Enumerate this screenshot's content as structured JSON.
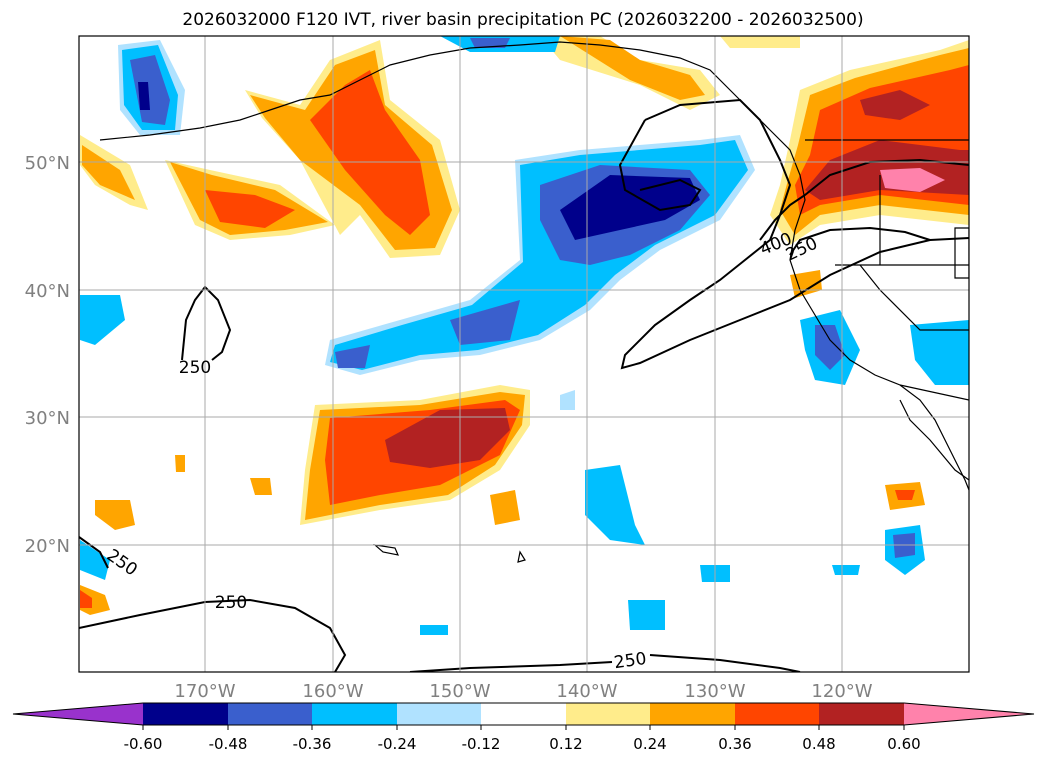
{
  "title": "2026032000 F120 IVT, river basin precipitation PC (2026032200 - 2026032500)",
  "map": {
    "lat_labels": [
      "50°N",
      "40°N",
      "30°N",
      "20°N"
    ],
    "lon_labels": [
      "170°W",
      "160°W",
      "150°W",
      "140°W",
      "130°W",
      "120°W"
    ],
    "gridlines": true,
    "contour_labels": [
      "250",
      "250",
      "250",
      "250",
      "400",
      "250"
    ]
  },
  "colorbar": {
    "ticks": [
      "-0.60",
      "-0.48",
      "-0.36",
      "-0.24",
      "-0.12",
      "0.12",
      "0.24",
      "0.36",
      "0.48",
      "0.60"
    ],
    "colors": [
      "#9932cc",
      "#00008b",
      "#3a5fcd",
      "#00bfff",
      "#b0e2ff",
      "#ffffff",
      "#ffec8b",
      "#ffa500",
      "#ff4500",
      "#b22222",
      "#ff82ab"
    ],
    "extend": "both"
  }
}
